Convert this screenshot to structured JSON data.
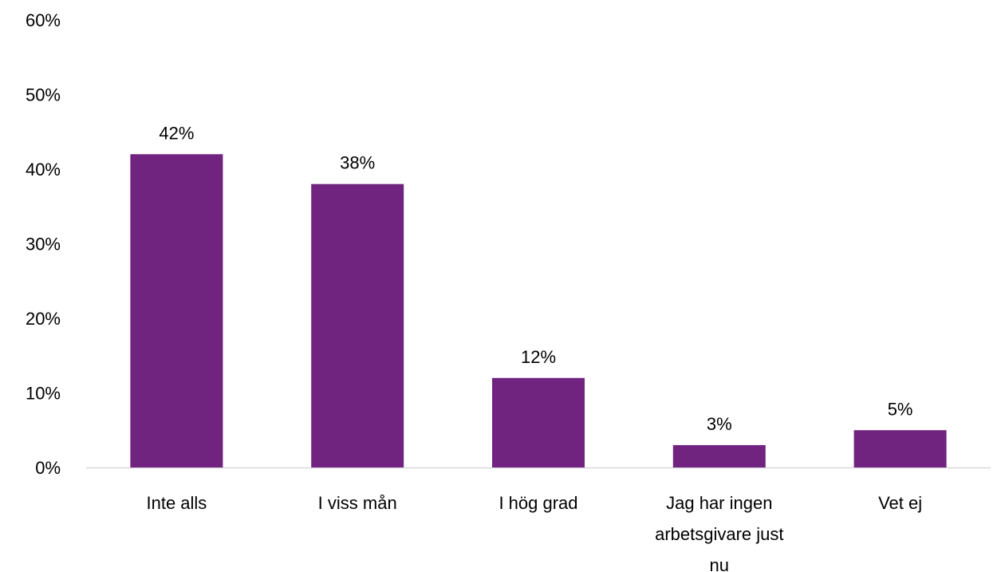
{
  "chart_data": {
    "type": "bar",
    "title": "",
    "xlabel": "",
    "ylabel": "",
    "categories": [
      [
        "Inte alls"
      ],
      [
        "I viss mån"
      ],
      [
        "I hög grad"
      ],
      [
        "Jag har ingen",
        "arbetsgivare just",
        "nu"
      ],
      [
        "Vet ej"
      ]
    ],
    "values": [
      42,
      38,
      12,
      3,
      5
    ],
    "data_labels": [
      "42%",
      "38%",
      "12%",
      "3%",
      "5%"
    ],
    "ylim": [
      0,
      60
    ],
    "yticks": [
      0,
      10,
      20,
      30,
      40,
      50,
      60
    ],
    "ytick_labels": [
      "0%",
      "10%",
      "20%",
      "30%",
      "40%",
      "50%",
      "60%"
    ],
    "grid": false,
    "legend": "none",
    "bar_color": "#70237f",
    "axis_color": "#d9d9d9"
  }
}
